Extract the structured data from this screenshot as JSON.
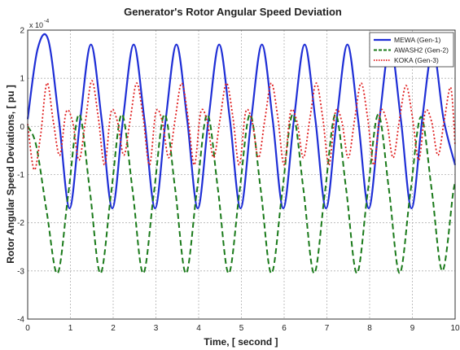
{
  "chart_data": {
    "type": "line",
    "title": "Generator's Rotor Angular Speed Deviation",
    "xlabel": "Time, [ second ]",
    "ylabel": "Rotor Angular Speed Deviations, [ pu ]",
    "y_exponent_base": "x 10",
    "y_exponent": "-4",
    "xlim": [
      0,
      10
    ],
    "ylim": [
      -4,
      2
    ],
    "x_ticks": [
      "0",
      "1",
      "2",
      "3",
      "4",
      "5",
      "6",
      "7",
      "8",
      "9",
      "10"
    ],
    "y_ticks": [
      "2",
      "1",
      "0",
      "-1",
      "-2",
      "-3",
      "-4"
    ],
    "grid": true,
    "legend_position": "top-right",
    "series": [
      {
        "name": "MEWA (Gen-1)",
        "color": "#1f2fd6",
        "style": "solid",
        "x": [
          0,
          0.23,
          0.48,
          0.73,
          0.98,
          1.23,
          1.48,
          1.73,
          1.98,
          2.23,
          2.48,
          2.73,
          2.98,
          3.23,
          3.48,
          3.73,
          3.98,
          4.23,
          4.48,
          4.73,
          4.98,
          5.23,
          5.48,
          5.73,
          5.98,
          6.23,
          6.48,
          6.73,
          6.98,
          7.23,
          7.48,
          7.73,
          7.98,
          8.23,
          8.48,
          8.73,
          8.98,
          9.23,
          9.48,
          9.73,
          10
        ],
        "y": [
          0.15,
          1.6,
          1.8,
          0.15,
          -1.7,
          0.15,
          1.7,
          0.15,
          -1.7,
          0.15,
          1.7,
          0.15,
          -1.7,
          0.15,
          1.7,
          0.15,
          -1.7,
          0.15,
          1.7,
          0.15,
          -1.7,
          0.15,
          1.7,
          0.15,
          -1.7,
          0.15,
          1.7,
          0.15,
          -1.7,
          0.15,
          1.7,
          0.15,
          -1.7,
          0.15,
          1.7,
          0.15,
          -1.7,
          0.15,
          1.6,
          0.15,
          -0.8
        ]
      },
      {
        "name": "AWASH2 (Gen-2)",
        "color": "#1a7a1a",
        "style": "dashed",
        "x": [
          0,
          0.2,
          0.45,
          0.7,
          0.95,
          1.2,
          1.45,
          1.7,
          1.95,
          2.2,
          2.45,
          2.7,
          2.95,
          3.2,
          3.45,
          3.7,
          3.95,
          4.2,
          4.45,
          4.7,
          4.95,
          5.2,
          5.45,
          5.7,
          5.95,
          6.2,
          6.45,
          6.7,
          6.95,
          7.2,
          7.45,
          7.7,
          7.95,
          8.2,
          8.45,
          8.7,
          8.95,
          9.2,
          9.45,
          9.7,
          9.95,
          10
        ],
        "y": [
          0.0,
          -0.4,
          -1.8,
          -3.05,
          -1.4,
          0.25,
          -1.3,
          -3.05,
          -1.4,
          0.25,
          -1.3,
          -3.05,
          -1.4,
          0.25,
          -1.3,
          -3.05,
          -1.4,
          0.25,
          -1.3,
          -3.05,
          -1.4,
          0.25,
          -1.3,
          -3.05,
          -1.4,
          0.25,
          -1.3,
          -3.05,
          -1.4,
          0.25,
          -1.3,
          -3.05,
          -1.4,
          0.25,
          -1.3,
          -3.05,
          -1.4,
          0.2,
          -1.3,
          -3.0,
          -1.4,
          -1.2
        ]
      },
      {
        "name": "KOKA (Gen-3)",
        "color": "#e02020",
        "style": "dotted",
        "x": [
          0,
          0.15,
          0.3,
          0.45,
          0.6,
          0.75,
          0.9,
          1.05,
          1.2,
          1.35,
          1.5,
          1.65,
          1.8,
          1.95,
          2.1,
          2.25,
          2.4,
          2.55,
          2.7,
          2.85,
          3.0,
          3.15,
          3.3,
          3.45,
          3.6,
          3.75,
          3.9,
          4.05,
          4.2,
          4.35,
          4.5,
          4.65,
          4.8,
          4.95,
          5.1,
          5.25,
          5.4,
          5.55,
          5.7,
          5.85,
          6.0,
          6.15,
          6.3,
          6.45,
          6.6,
          6.75,
          6.9,
          7.05,
          7.2,
          7.35,
          7.5,
          7.65,
          7.8,
          7.95,
          8.1,
          8.25,
          8.4,
          8.55,
          8.7,
          8.85,
          9.0,
          9.15,
          9.3,
          9.45,
          9.6,
          9.75,
          9.9,
          10
        ],
        "y": [
          0.05,
          -0.9,
          -0.2,
          0.9,
          0.1,
          -0.6,
          0.3,
          0.1,
          -0.7,
          0.1,
          0.95,
          0.2,
          -0.8,
          0.3,
          0.1,
          -0.6,
          0.15,
          0.9,
          0.2,
          -0.8,
          0.3,
          0.1,
          -0.65,
          0.15,
          0.9,
          0.2,
          -0.8,
          0.3,
          0.1,
          -0.65,
          0.15,
          0.9,
          0.2,
          -0.8,
          0.3,
          0.1,
          -0.65,
          0.15,
          0.9,
          0.2,
          -0.8,
          0.3,
          0.1,
          -0.65,
          0.15,
          0.9,
          0.2,
          -0.8,
          0.3,
          0.1,
          -0.65,
          0.15,
          0.9,
          0.2,
          -0.8,
          0.3,
          0.1,
          -0.65,
          0.15,
          0.85,
          0.2,
          -0.7,
          0.3,
          0.1,
          -0.6,
          0.15,
          0.8,
          -0.4
        ]
      }
    ]
  }
}
